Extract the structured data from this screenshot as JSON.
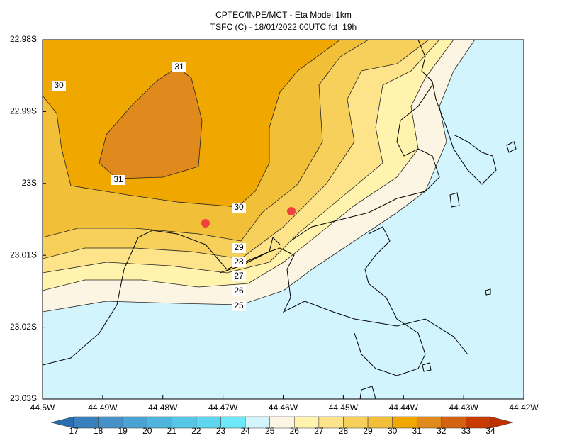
{
  "title": {
    "line1": "CPTEC/INPE/MCT -  Eta Model 1km",
    "line2": "TSFC (C) - 18/01/2022 00UTC fct=19h"
  },
  "x_axis": {
    "labels": [
      "44.5W",
      "44.49W",
      "44.48W",
      "44.47W",
      "44.46W",
      "44.45W",
      "44.44W",
      "44.43W",
      "44.42W"
    ]
  },
  "y_axis": {
    "labels": [
      "22.98S",
      "22.99S",
      "23S",
      "23.01S",
      "23.02S",
      "23.03S"
    ]
  },
  "contour_labels": [
    31,
    30,
    31,
    30,
    29,
    28,
    27,
    26,
    25
  ],
  "colorbar": {
    "labels": [
      17,
      18,
      19,
      20,
      21,
      22,
      23,
      24,
      25,
      26,
      27,
      28,
      29,
      30,
      31,
      32,
      33,
      34
    ],
    "colors": [
      "#2a6db0",
      "#3a80bd",
      "#4592c8",
      "#4aa3d2",
      "#4fb5dd",
      "#56c6e6",
      "#5fd6ef",
      "#6ce9f8",
      "#d2f4fc",
      "#fdf5e4",
      "#fff3ad",
      "#fde38a",
      "#f7d05c",
      "#f2bf38",
      "#f0a800",
      "#e08a1e",
      "#d56210",
      "#c93a00",
      "#c13000"
    ]
  }
}
